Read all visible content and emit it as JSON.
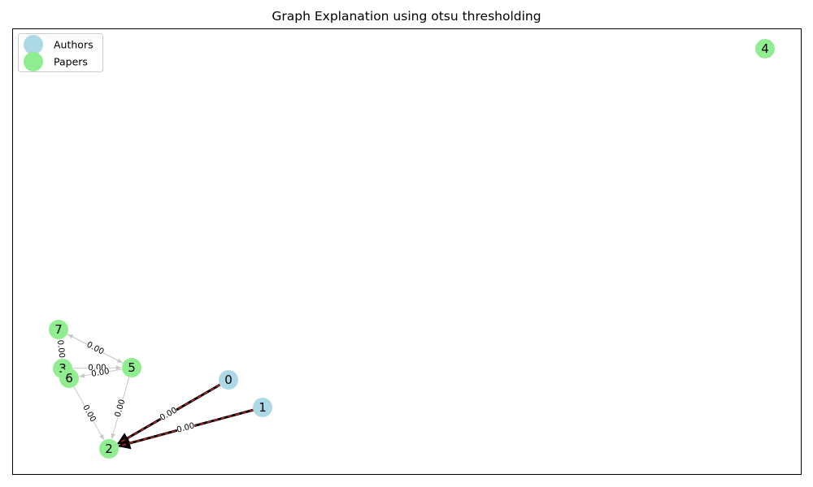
{
  "title": "Graph Explanation using otsu thresholding",
  "legend": {
    "placement": "top-left",
    "items": [
      {
        "label": "Authors",
        "color": "#add8e6"
      },
      {
        "label": "Papers",
        "color": "#90ee90"
      }
    ]
  },
  "colors": {
    "author": "#add8e6",
    "paper": "#90ee90",
    "edge_default": "#c8c8c8",
    "edge_highlight": "#000000",
    "edge_highlight_dash": "#d62728"
  },
  "nodes": [
    {
      "id": "0",
      "label": "0",
      "type": "author"
    },
    {
      "id": "1",
      "label": "1",
      "type": "author"
    },
    {
      "id": "2",
      "label": "2",
      "type": "paper"
    },
    {
      "id": "3",
      "label": "3",
      "type": "paper"
    },
    {
      "id": "4",
      "label": "4",
      "type": "paper"
    },
    {
      "id": "5",
      "label": "5",
      "type": "paper"
    },
    {
      "id": "6",
      "label": "6",
      "type": "paper"
    },
    {
      "id": "7",
      "label": "7",
      "type": "paper"
    }
  ],
  "edges": [
    {
      "source": "0",
      "target": "2",
      "label": "0.00",
      "highlight": true
    },
    {
      "source": "1",
      "target": "2",
      "label": "0.00",
      "highlight": true
    },
    {
      "source": "5",
      "target": "7",
      "label": "0.00",
      "highlight": false
    },
    {
      "source": "7",
      "target": "5",
      "label": "0.00",
      "highlight": false
    },
    {
      "source": "7",
      "target": "3",
      "label": "0.00",
      "highlight": false
    },
    {
      "source": "3",
      "target": "5",
      "label": "0.00",
      "highlight": false
    },
    {
      "source": "5",
      "target": "6",
      "label": "0.00",
      "highlight": false
    },
    {
      "source": "6",
      "target": "2",
      "label": "0.00",
      "highlight": false
    },
    {
      "source": "5",
      "target": "2",
      "label": "0.00",
      "highlight": false
    }
  ]
}
